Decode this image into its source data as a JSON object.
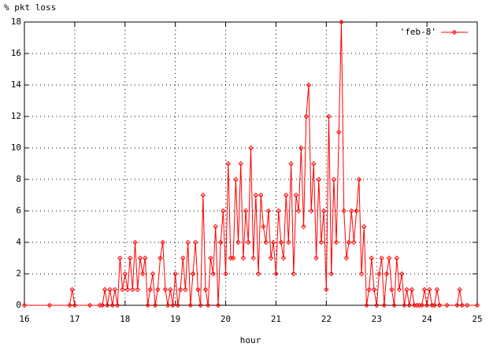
{
  "chart_data": {
    "type": "line",
    "y_label": "% pkt loss",
    "x_label": "hour",
    "xlim": [
      16,
      25
    ],
    "xticks": [
      16,
      17,
      18,
      19,
      20,
      21,
      22,
      23,
      24,
      25
    ],
    "ylim": [
      0,
      18
    ],
    "yticks": [
      0,
      2,
      4,
      6,
      8,
      10,
      12,
      14,
      16,
      18
    ],
    "grid": true,
    "legend": "top-right",
    "x": [
      16,
      16.5,
      16.9,
      16.95,
      17,
      17.3,
      17.5,
      17.55,
      17.6,
      17.65,
      17.7,
      17.75,
      17.8,
      17.85,
      17.9,
      17.95,
      18,
      18.05,
      18.1,
      18.15,
      18.2,
      18.25,
      18.3,
      18.35,
      18.4,
      18.45,
      18.5,
      18.55,
      18.6,
      18.65,
      18.7,
      18.75,
      18.8,
      18.85,
      18.9,
      18.95,
      19,
      19.05,
      19.1,
      19.15,
      19.2,
      19.25,
      19.3,
      19.35,
      19.4,
      19.45,
      19.5,
      19.55,
      19.6,
      19.65,
      19.7,
      19.75,
      19.8,
      19.85,
      19.9,
      19.95,
      20,
      20.05,
      20.1,
      20.15,
      20.2,
      20.25,
      20.3,
      20.35,
      20.4,
      20.45,
      20.5,
      20.55,
      20.6,
      20.65,
      20.7,
      20.75,
      20.8,
      20.85,
      20.9,
      20.95,
      21,
      21.05,
      21.1,
      21.15,
      21.2,
      21.25,
      21.3,
      21.35,
      21.4,
      21.45,
      21.5,
      21.55,
      21.6,
      21.65,
      21.7,
      21.75,
      21.8,
      21.85,
      21.9,
      21.95,
      22,
      22.05,
      22.1,
      22.15,
      22.2,
      22.25,
      22.3,
      22.35,
      22.4,
      22.45,
      22.5,
      22.55,
      22.6,
      22.65,
      22.7,
      22.75,
      22.8,
      22.85,
      22.9,
      22.95,
      23,
      23.05,
      23.1,
      23.15,
      23.2,
      23.25,
      23.3,
      23.35,
      23.4,
      23.45,
      23.5,
      23.55,
      23.6,
      23.65,
      23.7,
      23.75,
      23.8,
      23.85,
      23.9,
      23.95,
      24,
      24.05,
      24.1,
      24.15,
      24.2,
      24.25,
      24.4,
      24.6,
      24.65,
      24.7,
      24.8,
      25
    ],
    "series": [
      {
        "name": "'feb-8'",
        "color": "#ff0000",
        "values": [
          0,
          0,
          0,
          1,
          0,
          0,
          0,
          0,
          1,
          0,
          1,
          0,
          1,
          0,
          3,
          1,
          2,
          1,
          3,
          1,
          4,
          1,
          3,
          2,
          3,
          0,
          1,
          2,
          0,
          1,
          3,
          4,
          1,
          0,
          1,
          0,
          2,
          0,
          1,
          3,
          1,
          4,
          0,
          2,
          4,
          1,
          0,
          7,
          1,
          0,
          3,
          2,
          5,
          0,
          4,
          6,
          2,
          9,
          3,
          3,
          8,
          4,
          9,
          3,
          6,
          4,
          10,
          3,
          7,
          2,
          7,
          5,
          4,
          6,
          3,
          4,
          2,
          6,
          4,
          3,
          7,
          4,
          9,
          2,
          7,
          6,
          10,
          5,
          12,
          14,
          6,
          9,
          3,
          8,
          4,
          6,
          1,
          12,
          2,
          8,
          4,
          11,
          18,
          6,
          3,
          4,
          6,
          4,
          6,
          8,
          2,
          5,
          0,
          1,
          3,
          1,
          0,
          2,
          3,
          0,
          2,
          3,
          1,
          0,
          3,
          1,
          2,
          0,
          1,
          0,
          1,
          0,
          0,
          0,
          0,
          1,
          0,
          1,
          0,
          0,
          1,
          0,
          0,
          0,
          1,
          0,
          0,
          0
        ]
      }
    ]
  }
}
